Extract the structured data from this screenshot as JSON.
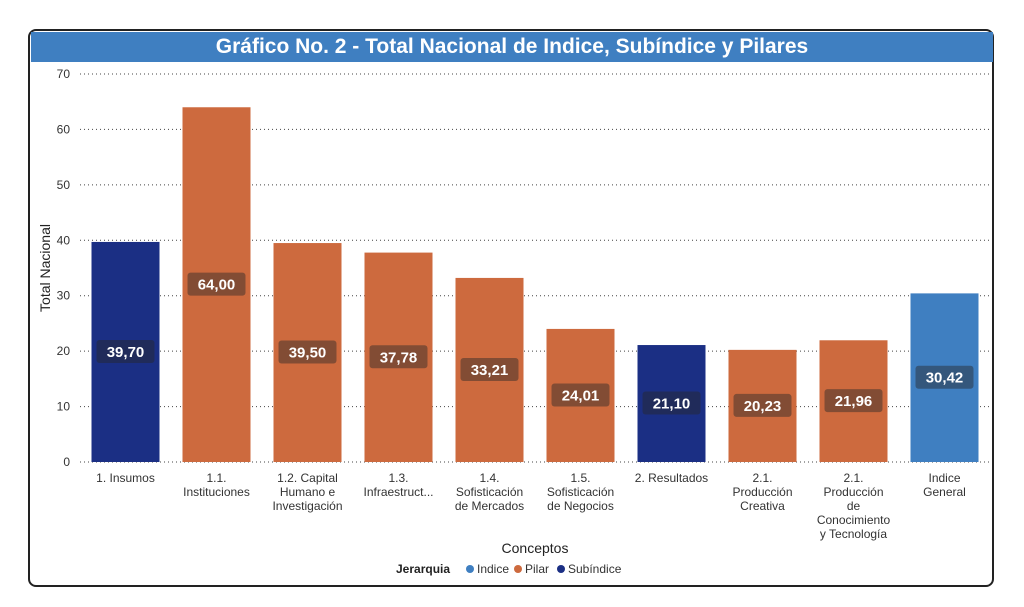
{
  "title": "Gráfico No. 2 - Total Nacional de Indice, Subíndice y Pilares",
  "colors": {
    "Indice": "#3f7fc1",
    "Pilar": "#cd6a3e",
    "Subíndice": "#1b2f84"
  },
  "chart_data": {
    "type": "bar",
    "title": "Gráfico No. 2 - Total Nacional de Indice, Subíndice y Pilares",
    "xlabel": "Conceptos",
    "ylabel": "Total Nacional",
    "ylim": [
      0,
      70
    ],
    "yticks": [
      0,
      10,
      20,
      30,
      40,
      50,
      60,
      70
    ],
    "grid": true,
    "categories": [
      [
        "1. Insumos"
      ],
      [
        "1.1.",
        "Instituciones"
      ],
      [
        "1.2. Capital",
        "Humano e",
        "Investigación"
      ],
      [
        "1.3.",
        "Infraestruct..."
      ],
      [
        "1.4.",
        "Sofisticación",
        "de Mercados"
      ],
      [
        "1.5.",
        "Sofisticación",
        "de Negocios"
      ],
      [
        "2. Resultados"
      ],
      [
        "2.1.",
        "Producción",
        "Creativa"
      ],
      [
        "2.1.",
        "Producción",
        "de",
        "Conocimiento",
        "y Tecnología"
      ],
      [
        "Indice",
        "General"
      ]
    ],
    "values": [
      39.7,
      64.0,
      39.5,
      37.78,
      33.21,
      24.01,
      21.1,
      20.23,
      21.96,
      30.42
    ],
    "labels": [
      "39,70",
      "64,00",
      "39,50",
      "37,78",
      "33,21",
      "24,01",
      "21,10",
      "20,23",
      "21,96",
      "30,42"
    ],
    "groups": [
      "Subíndice",
      "Pilar",
      "Pilar",
      "Pilar",
      "Pilar",
      "Pilar",
      "Subíndice",
      "Pilar",
      "Pilar",
      "Indice"
    ],
    "legend": {
      "title": "Jerarquia",
      "entries": [
        "Indice",
        "Pilar",
        "Subíndice"
      ],
      "position": "bottom-center"
    }
  }
}
